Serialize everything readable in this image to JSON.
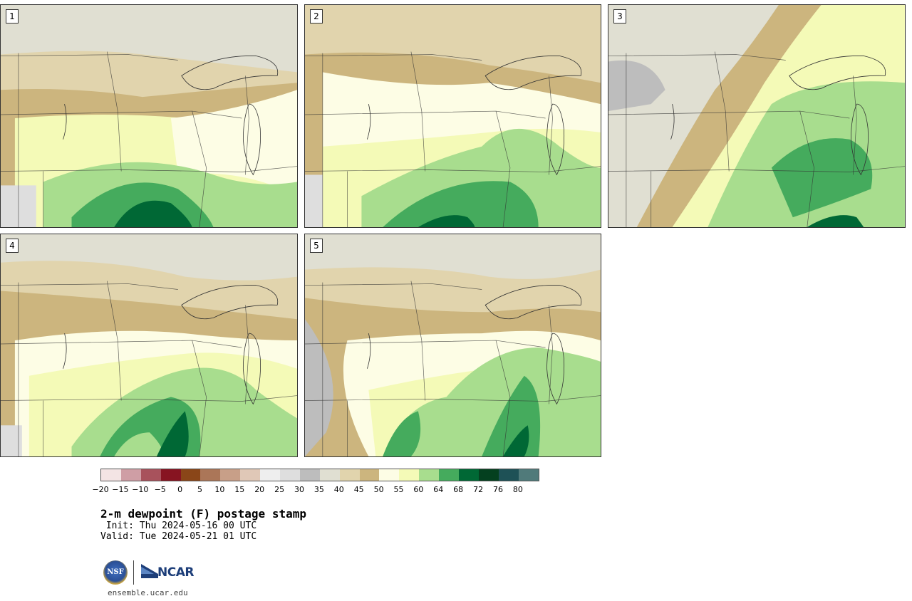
{
  "panels": [
    {
      "label": "1",
      "style": "north-dry"
    },
    {
      "label": "2",
      "style": "moist-south"
    },
    {
      "label": "3",
      "style": "west-dry"
    },
    {
      "label": "4",
      "style": "moist-sw"
    },
    {
      "label": "5",
      "style": "patchy"
    }
  ],
  "colorbar": {
    "colors": [
      "#f3e4e4",
      "#cf9ea5",
      "#a8525c",
      "#871421",
      "#8a4618",
      "#ab7658",
      "#c89f88",
      "#e0c8b7",
      "#eeeeee",
      "#dedede",
      "#bdbdbd",
      "#e0dfd2",
      "#e1d4ad",
      "#ccb57e",
      "#fdfde5",
      "#f4fab7",
      "#a8dd8e",
      "#45ab5d",
      "#006835",
      "#04401f",
      "#1e5156",
      "#507a7a"
    ],
    "ticks": [
      "-20",
      "-15",
      "-10",
      "-5",
      "0",
      "5",
      "10",
      "15",
      "20",
      "25",
      "30",
      "35",
      "40",
      "45",
      "50",
      "55",
      "60",
      "64",
      "68",
      "72",
      "76",
      "80"
    ]
  },
  "title": "2-m dewpoint (F) postage stamp",
  "init": " Init: Thu 2024-05-16 00 UTC",
  "valid": "Valid: Tue 2024-05-21 01 UTC",
  "logos": {
    "nsf": "NSF",
    "ncar": "NCAR"
  },
  "site": "ensemble.ucar.edu"
}
